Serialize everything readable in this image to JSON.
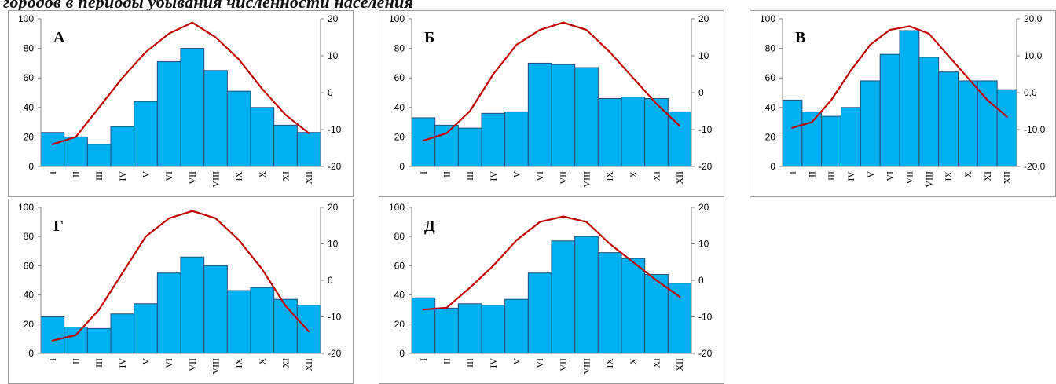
{
  "page": {
    "title_fragment": "городов в периоды убывания численности населения"
  },
  "colors": {
    "bar_fill": "#00B0F0",
    "bar_stroke": "#1f4e79",
    "line": "#C00000",
    "axis": "#808080",
    "text": "#000000"
  },
  "chart_data": [
    {
      "type": "bar",
      "panel_label": "А",
      "categories": [
        "I",
        "II",
        "III",
        "IV",
        "V",
        "VI",
        "VII",
        "VIII",
        "IX",
        "X",
        "XI",
        "XII"
      ],
      "values": [
        23,
        20,
        15,
        27,
        44,
        71,
        80,
        65,
        51,
        40,
        28,
        23
      ],
      "ylim": [
        0,
        100
      ],
      "yticks": [
        "0",
        "20",
        "40",
        "60",
        "80",
        "100"
      ],
      "y2lim": [
        -20,
        20
      ],
      "y2ticks": [
        "-20",
        "-10",
        "0",
        "10",
        "20"
      ],
      "line": [
        -14,
        -12,
        -4,
        4,
        11,
        16,
        19,
        15,
        9,
        1,
        -6,
        -11
      ]
    },
    {
      "type": "bar",
      "panel_label": "Б",
      "categories": [
        "I",
        "II",
        "III",
        "IV",
        "V",
        "VI",
        "VII",
        "VIII",
        "IX",
        "X",
        "XI",
        "XII"
      ],
      "values": [
        33,
        28,
        26,
        36,
        37,
        70,
        69,
        67,
        46,
        47,
        46,
        37
      ],
      "ylim": [
        0,
        100
      ],
      "yticks": [
        "0",
        "20",
        "40",
        "60",
        "80",
        "100"
      ],
      "y2lim": [
        -20,
        20
      ],
      "y2ticks": [
        "-20",
        "-10",
        "0",
        "10",
        "20"
      ],
      "line": [
        -13,
        -11,
        -5,
        5,
        13,
        17,
        19,
        17,
        11,
        4,
        -3,
        -9
      ]
    },
    {
      "type": "bar",
      "panel_label": "В",
      "categories": [
        "I",
        "II",
        "III",
        "IV",
        "V",
        "VI",
        "VII",
        "VIII",
        "IX",
        "X",
        "XI",
        "XII"
      ],
      "values": [
        45,
        37,
        34,
        40,
        58,
        76,
        92,
        74,
        64,
        58,
        58,
        52
      ],
      "ylim": [
        0,
        100
      ],
      "yticks": [
        "0",
        "20",
        "40",
        "60",
        "80",
        "100"
      ],
      "y2lim": [
        -20,
        20
      ],
      "y2ticks": [
        "-20,0",
        "-10,0",
        "0,0",
        "10,0",
        "20,0"
      ],
      "line": [
        -9.5,
        -8,
        -2,
        6,
        13,
        17,
        18,
        16,
        10,
        4,
        -2,
        -6.5
      ]
    },
    {
      "type": "bar",
      "panel_label": "Г",
      "categories": [
        "I",
        "II",
        "III",
        "IV",
        "V",
        "VI",
        "VII",
        "VIII",
        "IX",
        "X",
        "XI",
        "XII"
      ],
      "values": [
        25,
        18,
        17,
        27,
        34,
        55,
        66,
        60,
        43,
        45,
        37,
        33
      ],
      "ylim": [
        0,
        100
      ],
      "yticks": [
        "0",
        "20",
        "40",
        "60",
        "80",
        "100"
      ],
      "y2lim": [
        -20,
        20
      ],
      "y2ticks": [
        "-20",
        "-10",
        "0",
        "10",
        "20"
      ],
      "line": [
        -16.5,
        -15,
        -8,
        2,
        12,
        17,
        19,
        17,
        11,
        3,
        -7,
        -14
      ]
    },
    {
      "type": "bar",
      "panel_label": "Д",
      "categories": [
        "I",
        "II",
        "III",
        "IV",
        "V",
        "VI",
        "VII",
        "VIII",
        "IX",
        "X",
        "XI",
        "XII"
      ],
      "values": [
        38,
        31,
        34,
        33,
        37,
        55,
        77,
        80,
        69,
        65,
        54,
        48
      ],
      "ylim": [
        0,
        100
      ],
      "yticks": [
        "0",
        "20",
        "40",
        "60",
        "80",
        "100"
      ],
      "y2lim": [
        -20,
        20
      ],
      "y2ticks": [
        "-20",
        "-10",
        "0",
        "10",
        "20"
      ],
      "line": [
        -8,
        -7.5,
        -2,
        4,
        11,
        16,
        17.5,
        16,
        10,
        5,
        0,
        -4.5
      ]
    }
  ]
}
